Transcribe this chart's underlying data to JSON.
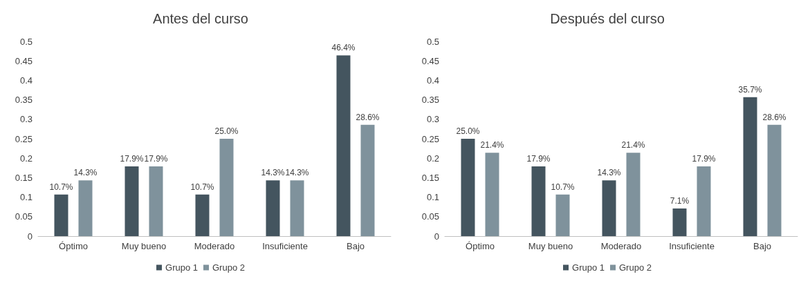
{
  "chart_data": [
    {
      "type": "bar",
      "title": "Antes del curso",
      "categories": [
        "Óptimo",
        "Muy bueno",
        "Moderado",
        "Insuficiente",
        "Bajo"
      ],
      "series": [
        {
          "name": "Grupo 1",
          "color": "#44555f",
          "values": [
            0.107,
            0.179,
            0.107,
            0.143,
            0.464
          ],
          "value_labels": [
            "10.7%",
            "17.9%",
            "10.7%",
            "14.3%",
            "46.4%"
          ]
        },
        {
          "name": "Grupo 2",
          "color": "#7f929c",
          "values": [
            0.143,
            0.179,
            0.25,
            0.143,
            0.286
          ],
          "value_labels": [
            "14.3%",
            "17.9%",
            "25.0%",
            "14.3%",
            "28.6%"
          ]
        }
      ],
      "ylim": [
        0,
        0.5
      ],
      "yticks": [
        0,
        0.05,
        0.1,
        0.15,
        0.2,
        0.25,
        0.3,
        0.35,
        0.4,
        0.45,
        0.5
      ],
      "grid": false,
      "legend": "bottom"
    },
    {
      "type": "bar",
      "title": "Después del curso",
      "categories": [
        "Óptimo",
        "Muy bueno",
        "Moderado",
        "Insuficiente",
        "Bajo"
      ],
      "series": [
        {
          "name": "Grupo 1",
          "color": "#44555f",
          "values": [
            0.25,
            0.179,
            0.143,
            0.071,
            0.357
          ],
          "value_labels": [
            "25.0%",
            "17.9%",
            "14.3%",
            "7.1%",
            "35.7%"
          ]
        },
        {
          "name": "Grupo 2",
          "color": "#7f929c",
          "values": [
            0.214,
            0.107,
            0.214,
            0.179,
            0.286
          ],
          "value_labels": [
            "21.4%",
            "10.7%",
            "21.4%",
            "17.9%",
            "28.6%"
          ]
        }
      ],
      "ylim": [
        0,
        0.5
      ],
      "yticks": [
        0,
        0.05,
        0.1,
        0.15,
        0.2,
        0.25,
        0.3,
        0.35,
        0.4,
        0.45,
        0.5
      ],
      "grid": false,
      "legend": "bottom"
    }
  ]
}
